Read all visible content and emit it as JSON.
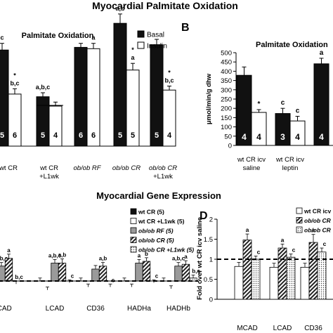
{
  "figure": {
    "top_title": "Myocardial Palmitate Oxidation",
    "middle_title": "Myocardial Gene Expression"
  },
  "chart_data": [
    {
      "panel": "",
      "type": "bar",
      "title": "Palmitate Oxidation",
      "ylabel": "",
      "ylim": [
        0,
        500
      ],
      "categories": [
        "wt CR",
        "wt CR +L1wk",
        "ob/ob RF",
        "ob/ob CR",
        "ob/ob CR +L1wk"
      ],
      "series": [
        {
          "name": "Basal",
          "color": "#111111",
          "pattern": "solid",
          "values": [
            360,
            185,
            370,
            460,
            380
          ],
          "errors": [
            25,
            15,
            15,
            35,
            20
          ],
          "n": [
            "5",
            "5",
            "6",
            "5",
            "5"
          ],
          "labels": [
            "c",
            "a,b,c",
            "",
            "a,b",
            ""
          ]
        },
        {
          "name": "Insulin",
          "color": "#ffffff",
          "pattern": "open",
          "values": [
            195,
            150,
            365,
            285,
            210
          ],
          "errors": [
            20,
            15,
            20,
            25,
            15
          ],
          "n": [
            "6",
            "4",
            "6",
            "5",
            "4"
          ],
          "labels": [
            "*\nb,c",
            "",
            "a",
            "*\na",
            "*\nb,c"
          ]
        }
      ]
    },
    {
      "panel": "B",
      "type": "bar",
      "title": "Palmitate Oxidation",
      "ylabel": "μmol/min/g dhw",
      "ylim": [
        0,
        500
      ],
      "yticks": [
        0,
        50,
        100,
        150,
        200,
        250,
        300,
        350,
        400,
        450,
        500
      ],
      "categories": [
        "wt CR icv saline",
        "wt CR icv leptin",
        ""
      ],
      "series": [
        {
          "name": "",
          "color": "#111111",
          "pattern": "solid",
          "values": [
            378,
            172,
            440
          ],
          "errors": [
            45,
            28,
            30
          ],
          "n": [
            "4",
            "3",
            "4"
          ],
          "labels": [
            "",
            "c",
            "a"
          ]
        },
        {
          "name": "",
          "color": "#ffffff",
          "pattern": "open",
          "values": [
            178,
            132,
            null
          ],
          "errors": [
            15,
            25,
            null
          ],
          "n": [
            "4",
            "4",
            ""
          ],
          "labels": [
            "*",
            "c",
            ""
          ]
        }
      ]
    },
    {
      "panel": "",
      "type": "bar",
      "title": "",
      "ylabel": "",
      "ylim": [
        0,
        2
      ],
      "categories": [
        "MCAD",
        "LCAD",
        "CD36",
        "HADHa",
        "HADHb"
      ],
      "reference_line": 1,
      "series": [
        {
          "name": "wt CR (5)",
          "pattern": "solid",
          "values": [
            1.0,
            1.0,
            1.0,
            1.0,
            1.0
          ],
          "errors": [
            0.05,
            0.05,
            0.05,
            0.05,
            0.05
          ],
          "labels": [
            "",
            "",
            "",
            "",
            ""
          ]
        },
        {
          "name": "wt CR +L1wk (5)",
          "pattern": "open",
          "values": [
            0.85,
            0.85,
            0.9,
            0.9,
            0.87
          ],
          "errors": [
            0.05,
            0.05,
            0.05,
            0.05,
            0.05
          ],
          "labels": [
            "",
            "",
            "",
            "",
            ""
          ]
        },
        {
          "name": "ob/ob RF (5)",
          "pattern": "gray",
          "values": [
            1.25,
            1.3,
            1.2,
            1.3,
            1.25
          ],
          "errors": [
            0.06,
            0.06,
            0.06,
            0.06,
            0.06
          ],
          "labels": [
            "a,b,c",
            "a,b,c",
            "",
            "a",
            "a,b,c"
          ]
        },
        {
          "name": "ob/ob CR (5)",
          "pattern": "hatch",
          "values": [
            1.38,
            1.3,
            1.25,
            1.33,
            1.28
          ],
          "errors": [
            0.07,
            0.07,
            0.06,
            0.06,
            0.06
          ],
          "labels": [
            "a",
            "a,b",
            "a,b",
            "b",
            "a"
          ]
        },
        {
          "name": "ob/ob CR +L1wk (5)",
          "pattern": "dots",
          "values": [
            0.95,
            0.97,
            0.9,
            0.97,
            1.05
          ],
          "errors": [
            0.05,
            0.05,
            0.05,
            0.05,
            0.05
          ],
          "labels": [
            "b,c",
            "c",
            "c",
            "c",
            "b,c"
          ]
        }
      ]
    },
    {
      "panel": "D",
      "type": "bar",
      "title": "",
      "ylabel": "Fold over wt CR icv saline",
      "ylim": [
        0,
        2
      ],
      "yticks": [
        0,
        0.5,
        1,
        1.5,
        2
      ],
      "categories": [
        "MCAD",
        "LCAD",
        "CD36"
      ],
      "reference_line": 1,
      "series": [
        {
          "name": "wt CR icv",
          "pattern": "open",
          "values": [
            0.82,
            0.8,
            0.8
          ],
          "errors": [
            0.1,
            0.1,
            0.1
          ],
          "labels": [
            "",
            "",
            ""
          ]
        },
        {
          "name": "ob/ob CR",
          "pattern": "hatch",
          "values": [
            1.48,
            1.28,
            1.42
          ],
          "errors": [
            0.15,
            0.1,
            0.2
          ],
          "labels": [
            "a",
            "a",
            "a"
          ]
        },
        {
          "name": "ob/ob CR",
          "pattern": "dots",
          "values": [
            1.0,
            1.05,
            1.18
          ],
          "errors": [
            0.08,
            0.08,
            0.1
          ],
          "labels": [
            "c",
            "c",
            "c"
          ]
        }
      ]
    }
  ]
}
